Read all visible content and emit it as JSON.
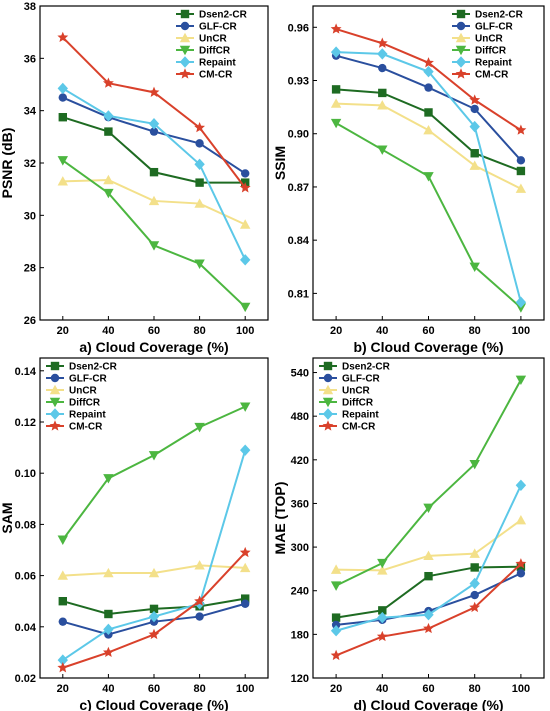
{
  "chart_data": [
    {
      "type": "line",
      "xlabel": "a) Cloud Coverage (%)",
      "ylabel": "PSNR (dB)",
      "x": [
        20,
        40,
        60,
        80,
        100
      ],
      "xlim": [
        10,
        110
      ],
      "ylim": [
        26,
        38
      ],
      "yticks": [
        26,
        28,
        30,
        32,
        34,
        36,
        38
      ],
      "ytick_labels": [
        "26",
        "28",
        "30",
        "32",
        "34",
        "36",
        "38"
      ],
      "legend": "top-right",
      "series": [
        {
          "name": "Dsen2-CR",
          "values": [
            33.75,
            33.2,
            31.65,
            31.25,
            31.25
          ]
        },
        {
          "name": "GLF-CR",
          "values": [
            34.5,
            33.75,
            33.2,
            32.75,
            31.6
          ]
        },
        {
          "name": "UnCR",
          "values": [
            31.3,
            31.35,
            30.55,
            30.45,
            29.65
          ]
        },
        {
          "name": "DiffCR",
          "values": [
            32.1,
            30.85,
            28.85,
            28.15,
            26.5
          ]
        },
        {
          "name": "Repaint",
          "values": [
            34.85,
            33.8,
            33.5,
            31.95,
            28.3
          ]
        },
        {
          "name": "CM-CR",
          "values": [
            36.8,
            35.05,
            34.7,
            33.35,
            31.05
          ]
        }
      ]
    },
    {
      "type": "line",
      "xlabel": "b) Cloud Coverage (%)",
      "ylabel": "SSIM",
      "x": [
        20,
        40,
        60,
        80,
        100
      ],
      "xlim": [
        10,
        110
      ],
      "ylim": [
        0.795,
        0.972
      ],
      "yticks": [
        0.81,
        0.84,
        0.87,
        0.9,
        0.93,
        0.96
      ],
      "ytick_labels": [
        "0.81",
        "0.84",
        "0.87",
        "0.90",
        "0.93",
        "0.96"
      ],
      "legend": "top-right",
      "series": [
        {
          "name": "Dsen2-CR",
          "values": [
            0.925,
            0.923,
            0.912,
            0.889,
            0.879
          ]
        },
        {
          "name": "GLF-CR",
          "values": [
            0.944,
            0.937,
            0.926,
            0.914,
            0.885
          ]
        },
        {
          "name": "UnCR",
          "values": [
            0.917,
            0.916,
            0.902,
            0.882,
            0.869
          ]
        },
        {
          "name": "DiffCR",
          "values": [
            0.906,
            0.891,
            0.876,
            0.825,
            0.802
          ]
        },
        {
          "name": "Repaint",
          "values": [
            0.946,
            0.945,
            0.935,
            0.904,
            0.805
          ]
        },
        {
          "name": "CM-CR",
          "values": [
            0.959,
            0.951,
            0.94,
            0.919,
            0.902
          ]
        }
      ]
    },
    {
      "type": "line",
      "xlabel": "c) Cloud Coverage (%)",
      "ylabel": "SAM",
      "x": [
        20,
        40,
        60,
        80,
        100
      ],
      "xlim": [
        10,
        110
      ],
      "ylim": [
        0.02,
        0.145
      ],
      "yticks": [
        0.02,
        0.04,
        0.06,
        0.08,
        0.1,
        0.12,
        0.14
      ],
      "ytick_labels": [
        "0.02",
        "0.04",
        "0.06",
        "0.08",
        "0.10",
        "0.12",
        "0.14"
      ],
      "legend": "top-left",
      "series": [
        {
          "name": "Dsen2-CR",
          "values": [
            0.05,
            0.045,
            0.047,
            0.048,
            0.051
          ]
        },
        {
          "name": "GLF-CR",
          "values": [
            0.042,
            0.037,
            0.042,
            0.044,
            0.049
          ]
        },
        {
          "name": "UnCR",
          "values": [
            0.06,
            0.061,
            0.061,
            0.064,
            0.063
          ]
        },
        {
          "name": "DiffCR",
          "values": [
            0.074,
            0.098,
            0.107,
            0.118,
            0.126
          ]
        },
        {
          "name": "Repaint",
          "values": [
            0.027,
            0.039,
            0.044,
            0.049,
            0.109
          ]
        },
        {
          "name": "CM-CR",
          "values": [
            0.024,
            0.03,
            0.037,
            0.05,
            0.069
          ]
        }
      ]
    },
    {
      "type": "line",
      "xlabel": "d) Cloud Coverage (%)",
      "ylabel": "MAE (TOP)",
      "x": [
        20,
        40,
        60,
        80,
        100
      ],
      "xlim": [
        10,
        110
      ],
      "ylim": [
        120,
        560
      ],
      "yticks": [
        120,
        180,
        240,
        300,
        360,
        420,
        480,
        540
      ],
      "ytick_labels": [
        "120",
        "180",
        "240",
        "300",
        "360",
        "420",
        "480",
        "540"
      ],
      "legend": "top-left",
      "series": [
        {
          "name": "Dsen2-CR",
          "values": [
            203,
            213,
            260,
            272,
            273
          ]
        },
        {
          "name": "GLF-CR",
          "values": [
            193,
            200,
            212,
            234,
            264
          ]
        },
        {
          "name": "UnCR",
          "values": [
            269,
            268,
            288,
            291,
            337
          ]
        },
        {
          "name": "DiffCR",
          "values": [
            247,
            278,
            354,
            414,
            530
          ]
        },
        {
          "name": "Repaint",
          "values": [
            185,
            203,
            207,
            250,
            385
          ]
        },
        {
          "name": "CM-CR",
          "values": [
            151,
            177,
            188,
            217,
            277
          ]
        }
      ]
    }
  ],
  "series_styles": [
    {
      "color": "#1e6b22",
      "marker": "square"
    },
    {
      "color": "#2a4f9e",
      "marker": "circle"
    },
    {
      "color": "#f3e08a",
      "marker": "triangle-up"
    },
    {
      "color": "#4cb640",
      "marker": "triangle-down"
    },
    {
      "color": "#5cc8e8",
      "marker": "diamond"
    },
    {
      "color": "#d9412b",
      "marker": "star"
    }
  ]
}
